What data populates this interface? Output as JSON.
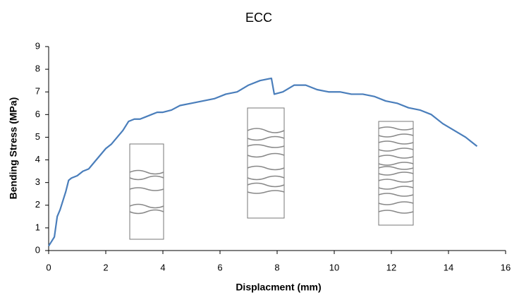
{
  "chart_data": {
    "type": "line",
    "title": "ECC",
    "x_label": "Displacment (mm)",
    "y_label": "Bending Stress (MPa)",
    "x": [
      0,
      0.1,
      0.2,
      0.3,
      0.4,
      0.5,
      0.6,
      0.7,
      0.8,
      1.0,
      1.2,
      1.4,
      1.6,
      1.8,
      2.0,
      2.2,
      2.4,
      2.6,
      2.8,
      3.0,
      3.2,
      3.4,
      3.6,
      3.8,
      4.0,
      4.3,
      4.6,
      5.0,
      5.4,
      5.8,
      6.2,
      6.6,
      7.0,
      7.4,
      7.8,
      7.9,
      8.2,
      8.6,
      9.0,
      9.4,
      9.8,
      10.2,
      10.6,
      11.0,
      11.4,
      11.8,
      12.2,
      12.6,
      13.0,
      13.4,
      13.8,
      14.2,
      14.6,
      14.8,
      15.0
    ],
    "series": [
      {
        "name": "ECC",
        "color": "#4a7ebb",
        "values": [
          0.2,
          0.4,
          0.6,
          1.5,
          1.8,
          2.2,
          2.6,
          3.1,
          3.2,
          3.3,
          3.5,
          3.6,
          3.9,
          4.2,
          4.5,
          4.7,
          5.0,
          5.3,
          5.7,
          5.8,
          5.8,
          5.9,
          6.0,
          6.1,
          6.1,
          6.2,
          6.4,
          6.5,
          6.6,
          6.7,
          6.9,
          7.0,
          7.3,
          7.5,
          7.6,
          6.9,
          7.0,
          7.3,
          7.3,
          7.1,
          7.0,
          7.0,
          6.9,
          6.9,
          6.8,
          6.6,
          6.5,
          6.3,
          6.2,
          6.0,
          5.6,
          5.3,
          5.0,
          4.8,
          4.6
        ]
      }
    ],
    "xlim": [
      0,
      16
    ],
    "xticks": [
      0,
      2,
      4,
      6,
      8,
      10,
      12,
      14,
      16
    ],
    "ylim": [
      0,
      9
    ],
    "yticks": [
      0,
      1,
      2,
      3,
      4,
      5,
      6,
      7,
      8,
      9
    ],
    "grid": false
  }
}
